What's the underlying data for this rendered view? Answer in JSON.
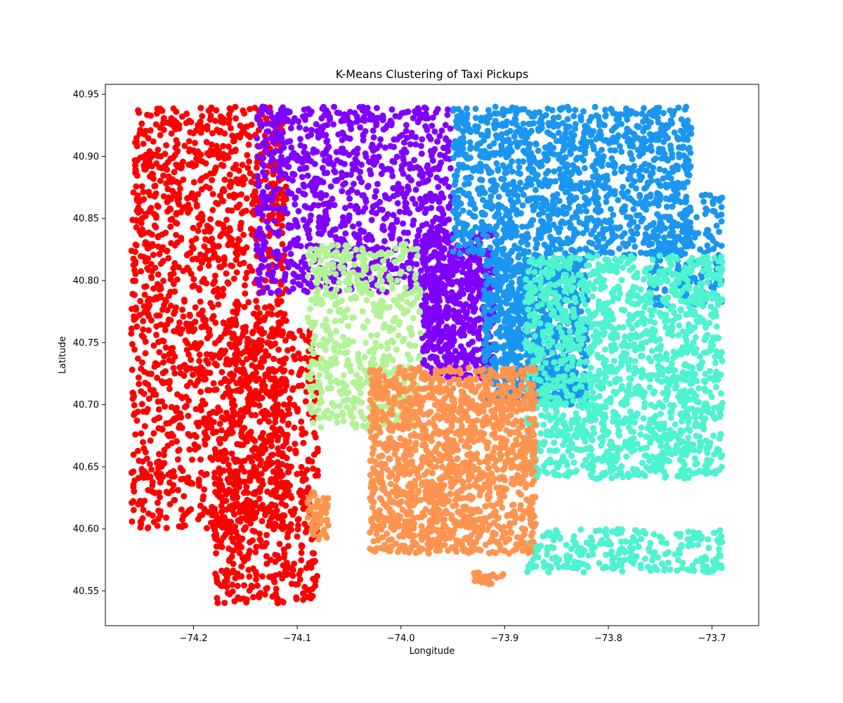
{
  "chart_data": {
    "type": "scatter",
    "title": "K-Means Clustering of Taxi Pickups",
    "xlabel": "Longitude",
    "ylabel": "Latitude",
    "xlim": [
      -74.285,
      -73.655
    ],
    "ylim": [
      40.522,
      40.958
    ],
    "xticks": [
      -74.2,
      -74.1,
      -74.0,
      -73.9,
      -73.8,
      -73.7
    ],
    "xtick_labels": [
      "−74.2",
      "−74.1",
      "−74.0",
      "−73.9",
      "−73.8",
      "−73.7"
    ],
    "yticks": [
      40.55,
      40.6,
      40.65,
      40.7,
      40.75,
      40.8,
      40.85,
      40.9,
      40.95
    ],
    "ytick_labels": [
      "40.55",
      "40.60",
      "40.65",
      "40.70",
      "40.75",
      "40.80",
      "40.85",
      "40.90",
      "40.95"
    ],
    "grid": false,
    "legend": false,
    "clusters": [
      {
        "color": "#ff0000",
        "regions": [
          {
            "lon": [
              -74.26,
              -74.11
            ],
            "lat": [
              40.6,
              40.94
            ],
            "count": 1600
          },
          {
            "lon": [
              -74.17,
              -74.08
            ],
            "lat": [
              40.64,
              40.76
            ],
            "count": 250
          },
          {
            "lon": [
              -74.18,
              -74.08
            ],
            "lat": [
              40.54,
              40.65
            ],
            "count": 350
          }
        ]
      },
      {
        "color": "#8000ff",
        "regions": [
          {
            "lon": [
              -74.14,
              -73.95
            ],
            "lat": [
              40.79,
              40.94
            ],
            "count": 1000
          },
          {
            "lon": [
              -73.98,
              -73.91
            ],
            "lat": [
              40.72,
              40.84
            ],
            "count": 600
          }
        ]
      },
      {
        "color": "#1a96f0",
        "regions": [
          {
            "lon": [
              -73.95,
              -73.72
            ],
            "lat": [
              40.82,
              40.94
            ],
            "count": 1300
          },
          {
            "lon": [
              -73.92,
              -73.82
            ],
            "lat": [
              40.7,
              40.82
            ],
            "count": 900
          },
          {
            "lon": [
              -73.76,
              -73.69
            ],
            "lat": [
              40.78,
              40.87
            ],
            "count": 200
          }
        ]
      },
      {
        "color": "#4ef3cf",
        "regions": [
          {
            "lon": [
              -73.88,
              -73.69
            ],
            "lat": [
              40.64,
              40.82
            ],
            "count": 1600
          },
          {
            "lon": [
              -73.88,
              -73.69
            ],
            "lat": [
              40.565,
              40.6
            ],
            "count": 250
          }
        ]
      },
      {
        "color": "#b2f396",
        "regions": [
          {
            "lon": [
              -74.09,
              -73.98
            ],
            "lat": [
              40.68,
              40.83
            ],
            "count": 550
          }
        ]
      },
      {
        "color": "#ff9450",
        "regions": [
          {
            "lon": [
              -74.03,
              -73.87
            ],
            "lat": [
              40.58,
              40.73
            ],
            "count": 1500
          },
          {
            "lon": [
              -74.09,
              -74.07
            ],
            "lat": [
              40.59,
              40.63
            ],
            "count": 60
          },
          {
            "lon": [
              -73.93,
              -73.9
            ],
            "lat": [
              40.555,
              40.565
            ],
            "count": 30
          }
        ]
      }
    ]
  }
}
